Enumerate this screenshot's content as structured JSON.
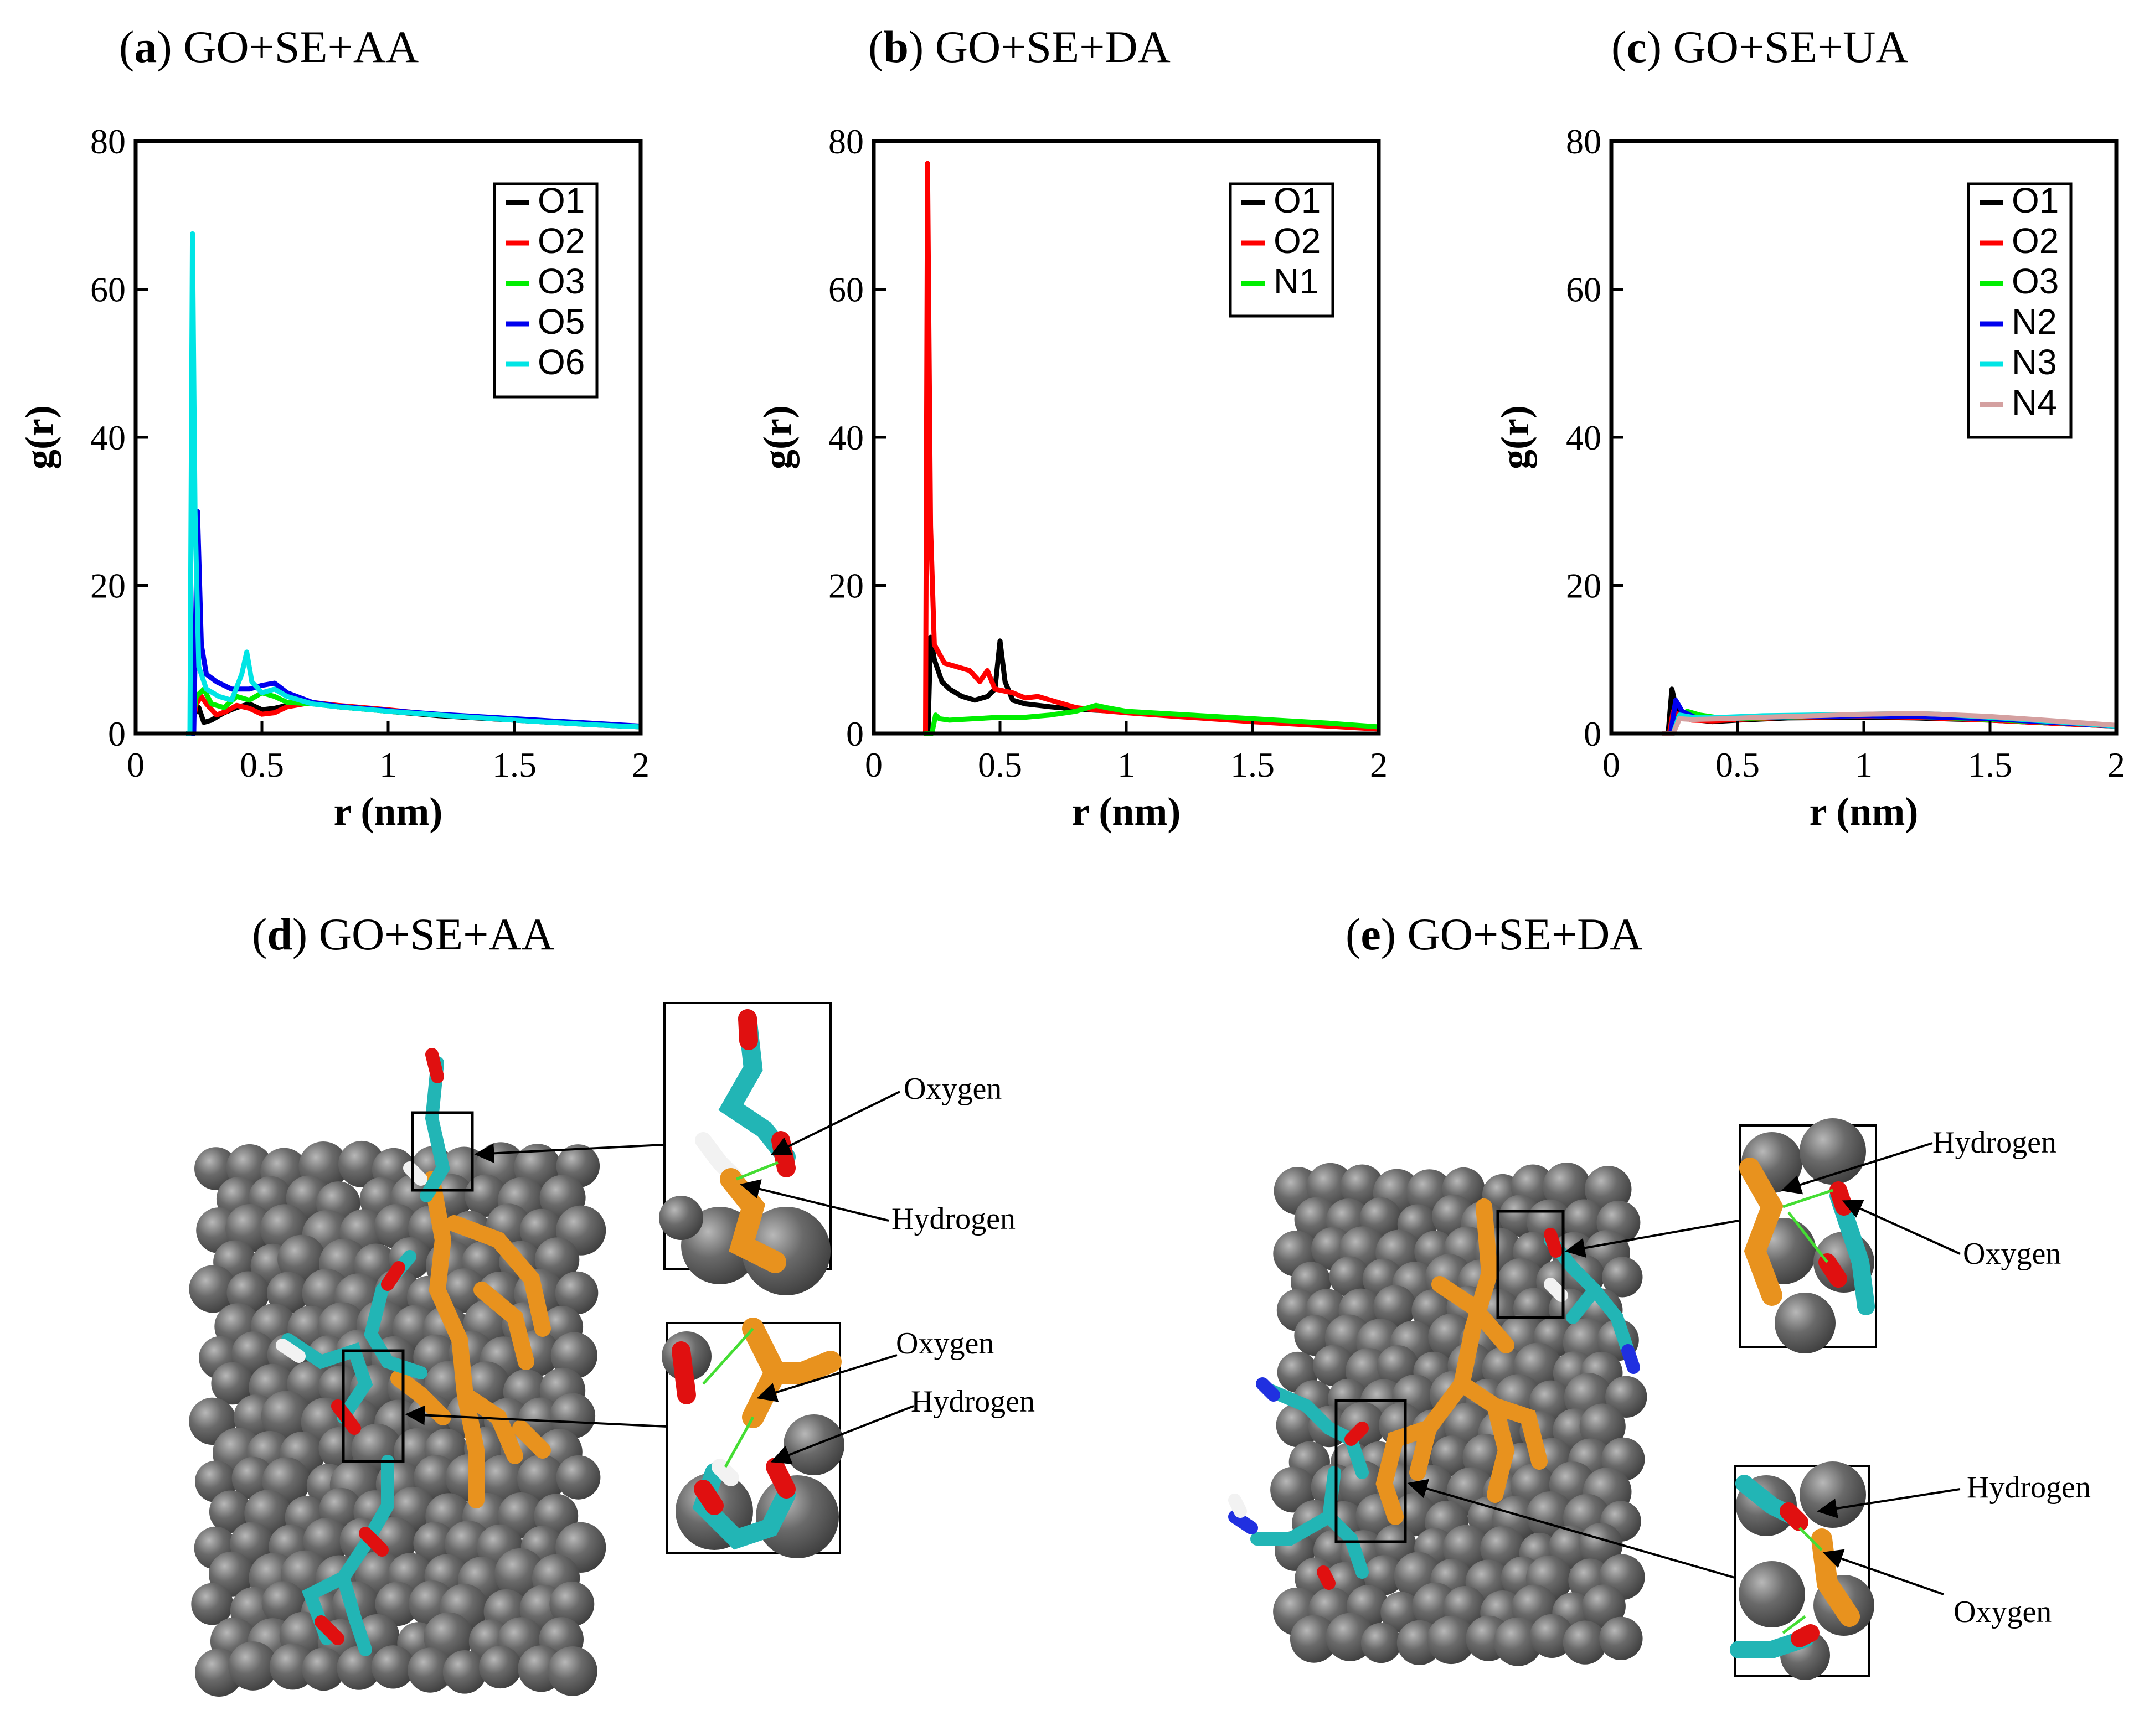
{
  "chart_data": [
    {
      "type": "line",
      "panel_label": "a",
      "title": "GO+SE+AA",
      "xlabel": "r (nm)",
      "ylabel": "g(r)",
      "xlim": [
        0,
        2
      ],
      "ylim": [
        0,
        80
      ],
      "xticks": [
        "0",
        "0.5",
        "1",
        "1.5",
        "2"
      ],
      "yticks": [
        "0",
        "20",
        "40",
        "60",
        "80"
      ],
      "legend_position": "top-right",
      "series": [
        {
          "name": "O1",
          "color": "#000000",
          "points": [
            [
              0.2,
              0
            ],
            [
              0.22,
              0
            ],
            [
              0.23,
              2.5
            ],
            [
              0.25,
              3.5
            ],
            [
              0.27,
              1.5
            ],
            [
              0.3,
              1.8
            ],
            [
              0.35,
              2.8
            ],
            [
              0.4,
              3.5
            ],
            [
              0.45,
              4
            ],
            [
              0.5,
              3.2
            ],
            [
              0.55,
              3.4
            ],
            [
              0.6,
              3.8
            ],
            [
              0.7,
              4.2
            ],
            [
              0.8,
              3.6
            ],
            [
              1.0,
              3.0
            ],
            [
              1.2,
              2.4
            ],
            [
              1.5,
              1.8
            ],
            [
              1.8,
              1.2
            ],
            [
              2.0,
              0.9
            ]
          ]
        },
        {
          "name": "O2",
          "color": "#ff0000",
          "points": [
            [
              0.2,
              0
            ],
            [
              0.22,
              0
            ],
            [
              0.24,
              4
            ],
            [
              0.26,
              5
            ],
            [
              0.28,
              4
            ],
            [
              0.32,
              2.5
            ],
            [
              0.36,
              3
            ],
            [
              0.4,
              3.8
            ],
            [
              0.45,
              3.4
            ],
            [
              0.5,
              2.6
            ],
            [
              0.55,
              2.8
            ],
            [
              0.6,
              3.6
            ],
            [
              0.7,
              4.2
            ],
            [
              0.8,
              3.8
            ],
            [
              1.0,
              3.2
            ],
            [
              1.2,
              2.5
            ],
            [
              1.5,
              1.9
            ],
            [
              1.8,
              1.3
            ],
            [
              2.0,
              0.9
            ]
          ]
        },
        {
          "name": "O3",
          "color": "#00ee00",
          "points": [
            [
              0.2,
              0
            ],
            [
              0.22,
              0
            ],
            [
              0.24,
              5
            ],
            [
              0.27,
              6
            ],
            [
              0.3,
              4
            ],
            [
              0.35,
              3.5
            ],
            [
              0.4,
              5
            ],
            [
              0.45,
              4.5
            ],
            [
              0.5,
              5.5
            ],
            [
              0.55,
              5
            ],
            [
              0.6,
              4.2
            ],
            [
              0.7,
              4
            ],
            [
              0.8,
              3.6
            ],
            [
              1.0,
              3.0
            ],
            [
              1.2,
              2.5
            ],
            [
              1.5,
              1.9
            ],
            [
              1.8,
              1.3
            ],
            [
              2.0,
              0.9
            ]
          ]
        },
        {
          "name": "O5",
          "color": "#0000ee",
          "points": [
            [
              0.2,
              0
            ],
            [
              0.23,
              0
            ],
            [
              0.245,
              30
            ],
            [
              0.26,
              12
            ],
            [
              0.28,
              8
            ],
            [
              0.32,
              7
            ],
            [
              0.38,
              6
            ],
            [
              0.45,
              6
            ],
            [
              0.5,
              6.5
            ],
            [
              0.55,
              6.8
            ],
            [
              0.6,
              5.5
            ],
            [
              0.7,
              4.2
            ],
            [
              0.8,
              3.7
            ],
            [
              1.0,
              3.1
            ],
            [
              1.2,
              2.6
            ],
            [
              1.5,
              2.0
            ],
            [
              1.8,
              1.4
            ],
            [
              2.0,
              1.0
            ]
          ]
        },
        {
          "name": "O6",
          "color": "#00e5e5",
          "points": [
            [
              0.2,
              0
            ],
            [
              0.215,
              0
            ],
            [
              0.225,
              67.5
            ],
            [
              0.235,
              30
            ],
            [
              0.25,
              9
            ],
            [
              0.28,
              6
            ],
            [
              0.33,
              5
            ],
            [
              0.38,
              4.5
            ],
            [
              0.42,
              8
            ],
            [
              0.44,
              11
            ],
            [
              0.46,
              7
            ],
            [
              0.5,
              5.5
            ],
            [
              0.55,
              6
            ],
            [
              0.6,
              5
            ],
            [
              0.7,
              4
            ],
            [
              0.8,
              3.6
            ],
            [
              1.0,
              3.0
            ],
            [
              1.2,
              2.5
            ],
            [
              1.5,
              1.8
            ],
            [
              1.8,
              1.2
            ],
            [
              2.0,
              0.9
            ]
          ]
        }
      ]
    },
    {
      "type": "line",
      "panel_label": "b",
      "title": "GO+SE+DA",
      "xlabel": "r (nm)",
      "ylabel": "g(r)",
      "xlim": [
        0,
        2
      ],
      "ylim": [
        0,
        80
      ],
      "xticks": [
        "0",
        "0.5",
        "1",
        "1.5",
        "2"
      ],
      "yticks": [
        "0",
        "20",
        "40",
        "60",
        "80"
      ],
      "legend_position": "top-right",
      "series": [
        {
          "name": "O1",
          "color": "#000000",
          "points": [
            [
              0.2,
              0
            ],
            [
              0.215,
              0
            ],
            [
              0.225,
              13
            ],
            [
              0.24,
              10
            ],
            [
              0.27,
              7
            ],
            [
              0.3,
              6
            ],
            [
              0.35,
              5
            ],
            [
              0.4,
              4.5
            ],
            [
              0.45,
              5
            ],
            [
              0.48,
              6
            ],
            [
              0.5,
              12.5
            ],
            [
              0.52,
              7
            ],
            [
              0.55,
              4.5
            ],
            [
              0.6,
              4
            ],
            [
              0.7,
              3.6
            ],
            [
              0.8,
              3.3
            ],
            [
              1.0,
              2.9
            ],
            [
              1.2,
              2.4
            ],
            [
              1.5,
              1.8
            ],
            [
              1.8,
              1.2
            ],
            [
              2.0,
              0.8
            ]
          ]
        },
        {
          "name": "O2",
          "color": "#ff0000",
          "points": [
            [
              0.2,
              0
            ],
            [
              0.205,
              0
            ],
            [
              0.213,
              77
            ],
            [
              0.225,
              28
            ],
            [
              0.24,
              12
            ],
            [
              0.28,
              9.5
            ],
            [
              0.33,
              9
            ],
            [
              0.38,
              8.5
            ],
            [
              0.42,
              7
            ],
            [
              0.45,
              8.5
            ],
            [
              0.48,
              6
            ],
            [
              0.55,
              5.5
            ],
            [
              0.6,
              4.8
            ],
            [
              0.65,
              5
            ],
            [
              0.7,
              4.5
            ],
            [
              0.8,
              3.5
            ],
            [
              0.9,
              3.1
            ],
            [
              1.0,
              2.8
            ],
            [
              1.2,
              2.3
            ],
            [
              1.5,
              1.6
            ],
            [
              1.8,
              1.0
            ],
            [
              2.0,
              0.6
            ]
          ]
        },
        {
          "name": "N1",
          "color": "#00ee00",
          "points": [
            [
              0.2,
              0
            ],
            [
              0.23,
              0
            ],
            [
              0.245,
              2.5
            ],
            [
              0.26,
              2
            ],
            [
              0.3,
              1.8
            ],
            [
              0.4,
              2
            ],
            [
              0.5,
              2.2
            ],
            [
              0.6,
              2.2
            ],
            [
              0.7,
              2.5
            ],
            [
              0.8,
              3
            ],
            [
              0.88,
              3.8
            ],
            [
              0.92,
              3.5
            ],
            [
              1.0,
              3.0
            ],
            [
              1.2,
              2.6
            ],
            [
              1.5,
              2.0
            ],
            [
              1.8,
              1.4
            ],
            [
              2.0,
              0.9
            ]
          ]
        }
      ]
    },
    {
      "type": "line",
      "panel_label": "c",
      "title": "GO+SE+UA",
      "xlabel": "r (nm)",
      "ylabel": "g(r)",
      "xlim": [
        0,
        2
      ],
      "ylim": [
        0,
        80
      ],
      "xticks": [
        "0",
        "0.5",
        "1",
        "1.5",
        "2"
      ],
      "yticks": [
        "0",
        "20",
        "40",
        "60",
        "80"
      ],
      "legend_position": "top-right",
      "series": [
        {
          "name": "O1",
          "color": "#000000",
          "points": [
            [
              0.2,
              0
            ],
            [
              0.225,
              0
            ],
            [
              0.24,
              6
            ],
            [
              0.26,
              3
            ],
            [
              0.3,
              2
            ],
            [
              0.4,
              1.6
            ],
            [
              0.5,
              1.8
            ],
            [
              0.7,
              2.1
            ],
            [
              1.0,
              2.2
            ],
            [
              1.2,
              2.1
            ],
            [
              1.5,
              1.8
            ],
            [
              1.8,
              1.3
            ],
            [
              2.0,
              1.0
            ]
          ]
        },
        {
          "name": "O2",
          "color": "#ff0000",
          "points": [
            [
              0.2,
              0
            ],
            [
              0.23,
              0
            ],
            [
              0.245,
              3
            ],
            [
              0.27,
              2.5
            ],
            [
              0.32,
              1.8
            ],
            [
              0.4,
              1.7
            ],
            [
              0.5,
              1.9
            ],
            [
              0.7,
              2.2
            ],
            [
              1.0,
              2.3
            ],
            [
              1.2,
              2.2
            ],
            [
              1.5,
              1.8
            ],
            [
              1.8,
              1.3
            ],
            [
              2.0,
              1.0
            ]
          ]
        },
        {
          "name": "O3",
          "color": "#00ee00",
          "points": [
            [
              0.2,
              0
            ],
            [
              0.24,
              0
            ],
            [
              0.26,
              2
            ],
            [
              0.3,
              3
            ],
            [
              0.35,
              2.5
            ],
            [
              0.45,
              2
            ],
            [
              0.6,
              2.1
            ],
            [
              0.8,
              2.3
            ],
            [
              1.0,
              2.4
            ],
            [
              1.2,
              2.3
            ],
            [
              1.5,
              1.9
            ],
            [
              1.8,
              1.4
            ],
            [
              2.0,
              1.0
            ]
          ]
        },
        {
          "name": "N2",
          "color": "#0000ee",
          "points": [
            [
              0.2,
              0
            ],
            [
              0.235,
              0
            ],
            [
              0.255,
              4.5
            ],
            [
              0.28,
              3
            ],
            [
              0.33,
              2.2
            ],
            [
              0.45,
              2
            ],
            [
              0.6,
              2.2
            ],
            [
              0.8,
              2.3
            ],
            [
              1.0,
              2.4
            ],
            [
              1.2,
              2.3
            ],
            [
              1.5,
              2.0
            ],
            [
              1.8,
              1.4
            ],
            [
              2.0,
              1.0
            ]
          ]
        },
        {
          "name": "N3",
          "color": "#00e5e5",
          "points": [
            [
              0.2,
              0
            ],
            [
              0.245,
              0
            ],
            [
              0.27,
              2.5
            ],
            [
              0.32,
              2.2
            ],
            [
              0.45,
              2.2
            ],
            [
              0.6,
              2.4
            ],
            [
              0.8,
              2.5
            ],
            [
              1.0,
              2.6
            ],
            [
              1.2,
              2.7
            ],
            [
              1.3,
              2.6
            ],
            [
              1.5,
              2.2
            ],
            [
              1.8,
              1.5
            ],
            [
              2.0,
              1.0
            ]
          ]
        },
        {
          "name": "N4",
          "color": "#d4a0a0",
          "points": [
            [
              0.2,
              0
            ],
            [
              0.245,
              0
            ],
            [
              0.27,
              2
            ],
            [
              0.32,
              1.9
            ],
            [
              0.45,
              2
            ],
            [
              0.6,
              2.2
            ],
            [
              0.8,
              2.4
            ],
            [
              1.0,
              2.6
            ],
            [
              1.2,
              2.7
            ],
            [
              1.3,
              2.6
            ],
            [
              1.5,
              2.3
            ],
            [
              1.8,
              1.6
            ],
            [
              2.0,
              1.1
            ]
          ]
        }
      ]
    }
  ],
  "snapshots": [
    {
      "panel_label": "d",
      "title": "GO+SE+AA",
      "callouts": [
        {
          "label_top": "Oxygen",
          "label_bottom": "Hydrogen"
        },
        {
          "label_top": "Oxygen",
          "label_bottom": "Hydrogen"
        }
      ]
    },
    {
      "panel_label": "e",
      "title": "GO+SE+DA",
      "callouts": [
        {
          "label_top": "Hydrogen",
          "label_bottom": "Oxygen"
        },
        {
          "label_top": "Hydrogen",
          "label_bottom": "Oxygen"
        }
      ]
    }
  ],
  "colors": {
    "sphere_fill": "#5a5a5a",
    "sphere_highlight": "#a8a8a8",
    "ligand_cyan": "#22b5b5",
    "ligand_orange": "#e8921e",
    "oxygen_red": "#e01010",
    "hydrogen_white": "#f2f2f2",
    "nitrogen_blue": "#2030e0",
    "hbond_green": "#44dd33"
  }
}
